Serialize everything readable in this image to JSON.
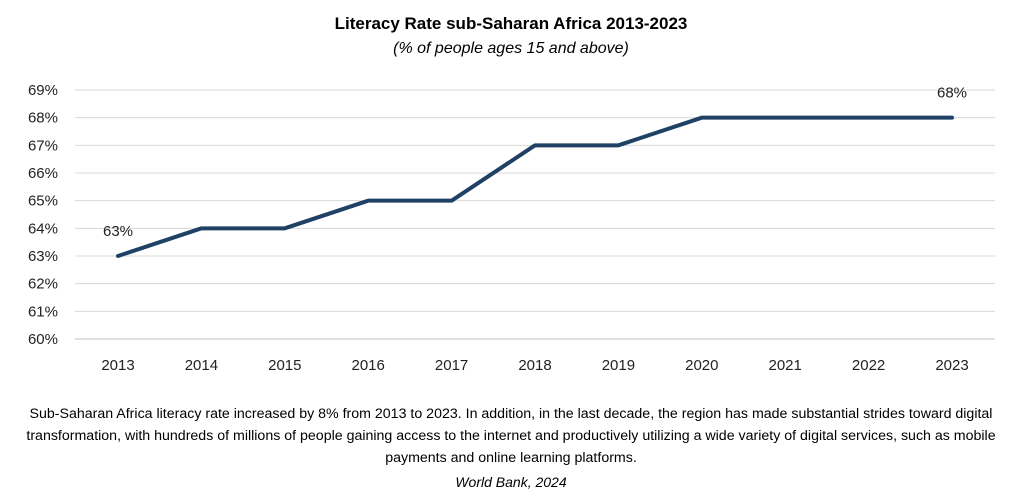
{
  "chart_data": {
    "type": "line",
    "title": "Literacy Rate sub-Saharan Africa 2013-2023",
    "subtitle": "(% of people ages 15 and above)",
    "xlabel": "",
    "ylabel": "",
    "categories": [
      "2013",
      "2014",
      "2015",
      "2016",
      "2017",
      "2018",
      "2019",
      "2020",
      "2021",
      "2022",
      "2023"
    ],
    "series": [
      {
        "values": [
          63,
          64,
          64,
          65,
          65,
          67,
          67,
          68,
          68,
          68,
          68
        ]
      }
    ],
    "ylim": [
      60,
      69
    ],
    "yticks": [
      "60%",
      "61%",
      "62%",
      "63%",
      "64%",
      "65%",
      "66%",
      "67%",
      "68%",
      "69%"
    ],
    "data_labels": [
      {
        "index": 0,
        "text": "63%"
      },
      {
        "index": 10,
        "text": "68%"
      }
    ],
    "grid": true,
    "legend": "none",
    "line_color": "#1f4166"
  },
  "caption": "Sub-Saharan Africa literacy rate increased by 8% from 2013 to 2023. In addition, in the last decade, the region has made substantial strides toward digital transformation, with hundreds of millions of people gaining access to the internet and productively utilizing a wide variety of digital services, such as mobile payments and online learning platforms.",
  "source": "World Bank, 2024"
}
